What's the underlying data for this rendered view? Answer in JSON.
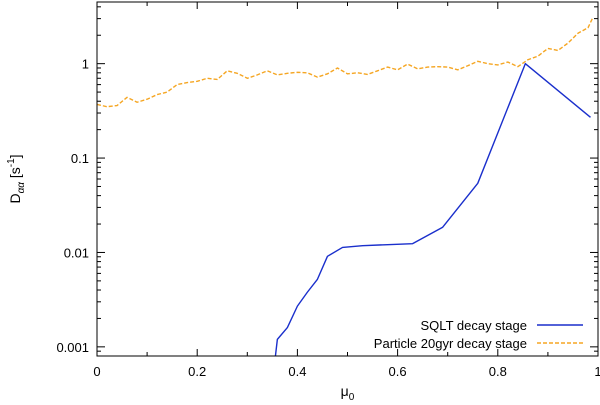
{
  "chart_data": {
    "type": "line",
    "title": "",
    "xlabel": {
      "main": "μ",
      "sub": "0"
    },
    "ylabel": {
      "main": "D",
      "sub": "αα",
      "unit_pre": " [s",
      "unit_sup": "-1",
      "unit_post": "]"
    },
    "x_scale": "linear",
    "y_scale": "log",
    "xlim": [
      0,
      1
    ],
    "ylim": [
      0.0008,
      4.5
    ],
    "x_ticks": [
      0,
      0.2,
      0.4,
      0.6,
      0.8,
      1
    ],
    "x_tick_labels": [
      "0",
      "0.2",
      "0.4",
      "0.6",
      "0.8",
      "1"
    ],
    "y_ticks": [
      0.001,
      0.01,
      0.1,
      1
    ],
    "y_tick_labels": [
      "0.001",
      "0.01",
      "0.1",
      "1"
    ],
    "grid": false,
    "legend_position": "bottom-right",
    "series": [
      {
        "name": "SQLT decay stage",
        "color": "#1a2fcc",
        "dash": "solid",
        "x": [
          0.355,
          0.36,
          0.38,
          0.4,
          0.42,
          0.44,
          0.46,
          0.49,
          0.53,
          0.58,
          0.63,
          0.69,
          0.76,
          0.855,
          0.985
        ],
        "y": [
          0.00071,
          0.0012,
          0.0016,
          0.0027,
          0.0038,
          0.0052,
          0.0091,
          0.0113,
          0.0118,
          0.0121,
          0.0124,
          0.0185,
          0.054,
          1.0,
          0.27
        ]
      },
      {
        "name": "Particle 20gyr decay stage",
        "color": "#f5a623",
        "dash": "dashed",
        "x": [
          0,
          0.02,
          0.04,
          0.06,
          0.08,
          0.1,
          0.12,
          0.14,
          0.16,
          0.18,
          0.2,
          0.22,
          0.24,
          0.26,
          0.28,
          0.3,
          0.32,
          0.34,
          0.36,
          0.38,
          0.4,
          0.42,
          0.44,
          0.46,
          0.48,
          0.5,
          0.52,
          0.54,
          0.56,
          0.58,
          0.6,
          0.62,
          0.64,
          0.66,
          0.68,
          0.7,
          0.72,
          0.74,
          0.76,
          0.78,
          0.8,
          0.82,
          0.84,
          0.86,
          0.88,
          0.9,
          0.92,
          0.94,
          0.96,
          0.98,
          0.99
        ],
        "y": [
          0.37,
          0.35,
          0.36,
          0.44,
          0.39,
          0.42,
          0.47,
          0.5,
          0.6,
          0.63,
          0.65,
          0.7,
          0.68,
          0.84,
          0.79,
          0.7,
          0.76,
          0.84,
          0.76,
          0.79,
          0.81,
          0.8,
          0.72,
          0.78,
          0.9,
          0.78,
          0.8,
          0.77,
          0.84,
          0.92,
          0.86,
          0.99,
          0.88,
          0.92,
          0.93,
          0.92,
          0.86,
          0.95,
          1.06,
          1.0,
          0.97,
          1.04,
          0.93,
          1.1,
          1.2,
          1.45,
          1.38,
          1.65,
          2.1,
          2.4,
          3.1
        ]
      }
    ]
  }
}
